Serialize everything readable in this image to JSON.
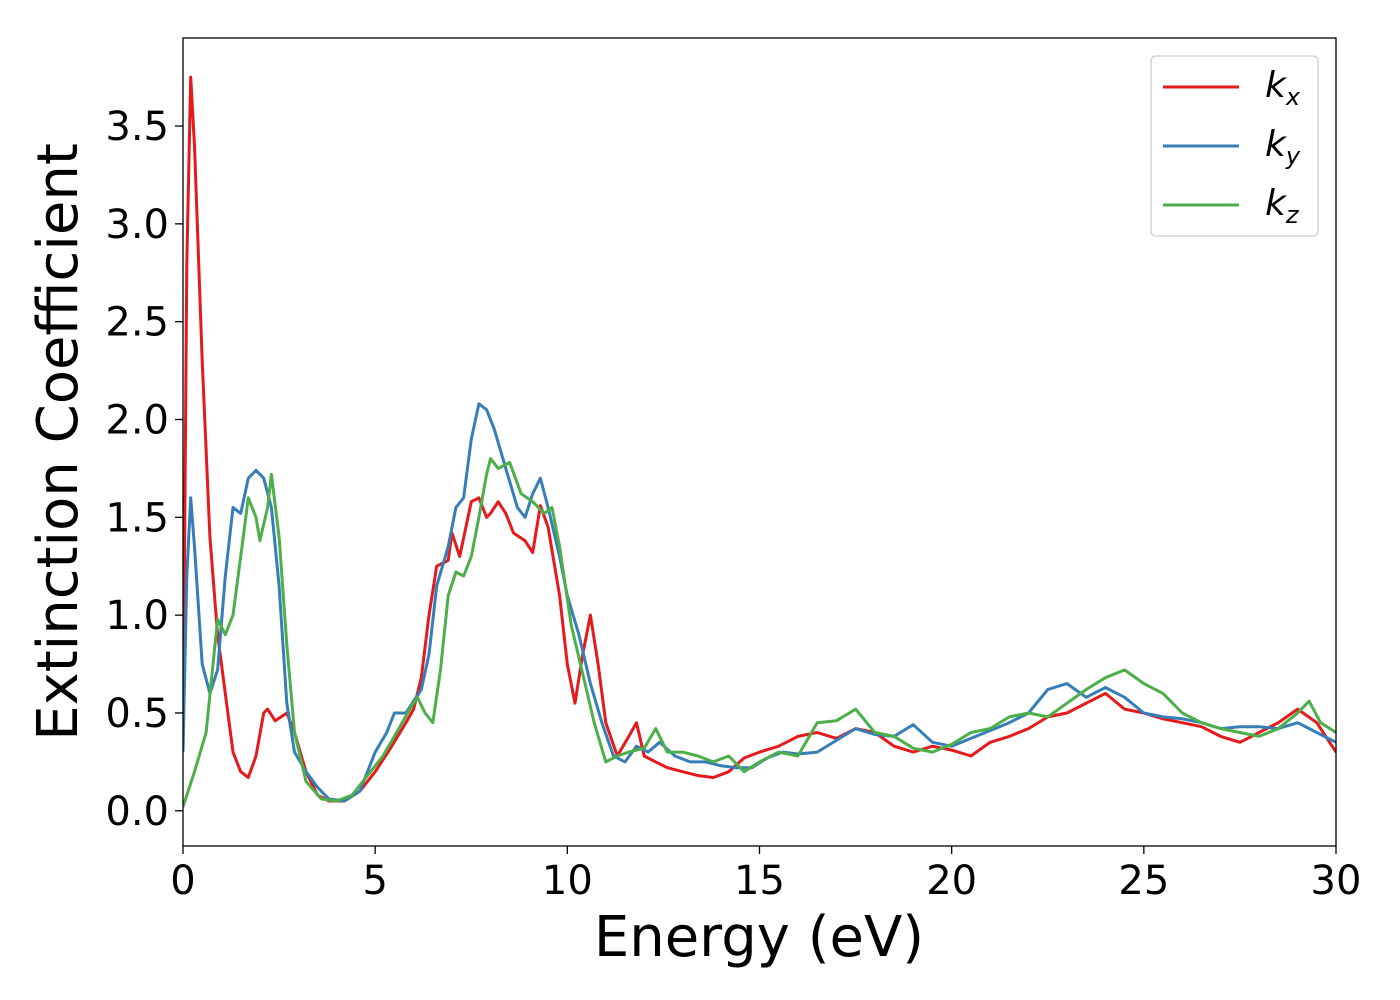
{
  "chart_data": {
    "type": "line",
    "xlabel": "Energy (eV)",
    "ylabel": "Extinction Coefficient",
    "xlim": [
      0,
      30
    ],
    "ylim": [
      -0.18,
      3.95
    ],
    "xticks": [
      0,
      5,
      10,
      15,
      20,
      25,
      30
    ],
    "yticks": [
      0.0,
      0.5,
      1.0,
      1.5,
      2.0,
      2.5,
      3.0,
      3.5
    ],
    "xtick_labels": [
      "0",
      "5",
      "10",
      "15",
      "20",
      "25",
      "30"
    ],
    "ytick_labels": [
      "0.0",
      "0.5",
      "1.0",
      "1.5",
      "2.0",
      "2.5",
      "3.0",
      "3.5"
    ],
    "grid": false,
    "legend_position": "top-right",
    "series": [
      {
        "name": "k",
        "sub": "x",
        "color": "#e41a1c",
        "points": [
          [
            0,
            0.3
          ],
          [
            0.1,
            2.8
          ],
          [
            0.2,
            3.75
          ],
          [
            0.3,
            3.4
          ],
          [
            0.5,
            2.3
          ],
          [
            0.7,
            1.4
          ],
          [
            0.9,
            0.9
          ],
          [
            1.1,
            0.6
          ],
          [
            1.3,
            0.3
          ],
          [
            1.5,
            0.2
          ],
          [
            1.7,
            0.17
          ],
          [
            1.9,
            0.28
          ],
          [
            2.1,
            0.5
          ],
          [
            2.2,
            0.52
          ],
          [
            2.4,
            0.46
          ],
          [
            2.7,
            0.5
          ],
          [
            2.9,
            0.4
          ],
          [
            3.2,
            0.2
          ],
          [
            3.5,
            0.08
          ],
          [
            3.8,
            0.05
          ],
          [
            4.2,
            0.05
          ],
          [
            4.6,
            0.1
          ],
          [
            5.0,
            0.2
          ],
          [
            5.4,
            0.32
          ],
          [
            5.8,
            0.45
          ],
          [
            6.0,
            0.52
          ],
          [
            6.2,
            0.68
          ],
          [
            6.4,
            1.0
          ],
          [
            6.6,
            1.25
          ],
          [
            6.9,
            1.28
          ],
          [
            7.0,
            1.42
          ],
          [
            7.2,
            1.3
          ],
          [
            7.5,
            1.58
          ],
          [
            7.7,
            1.6
          ],
          [
            7.9,
            1.5
          ],
          [
            8.0,
            1.52
          ],
          [
            8.2,
            1.58
          ],
          [
            8.4,
            1.52
          ],
          [
            8.6,
            1.42
          ],
          [
            8.9,
            1.38
          ],
          [
            9.1,
            1.32
          ],
          [
            9.3,
            1.56
          ],
          [
            9.5,
            1.45
          ],
          [
            9.8,
            1.1
          ],
          [
            10.0,
            0.75
          ],
          [
            10.2,
            0.55
          ],
          [
            10.4,
            0.8
          ],
          [
            10.6,
            1.0
          ],
          [
            10.8,
            0.75
          ],
          [
            11.0,
            0.45
          ],
          [
            11.3,
            0.28
          ],
          [
            11.6,
            0.38
          ],
          [
            11.8,
            0.45
          ],
          [
            12.0,
            0.28
          ],
          [
            12.3,
            0.25
          ],
          [
            12.6,
            0.22
          ],
          [
            13.0,
            0.2
          ],
          [
            13.4,
            0.18
          ],
          [
            13.8,
            0.17
          ],
          [
            14.2,
            0.2
          ],
          [
            14.6,
            0.27
          ],
          [
            15.0,
            0.3
          ],
          [
            15.5,
            0.33
          ],
          [
            16.0,
            0.38
          ],
          [
            16.5,
            0.4
          ],
          [
            17.0,
            0.37
          ],
          [
            17.5,
            0.42
          ],
          [
            18.0,
            0.4
          ],
          [
            18.5,
            0.33
          ],
          [
            19.0,
            0.3
          ],
          [
            19.5,
            0.33
          ],
          [
            20.0,
            0.31
          ],
          [
            20.5,
            0.28
          ],
          [
            21.0,
            0.35
          ],
          [
            21.5,
            0.38
          ],
          [
            22.0,
            0.42
          ],
          [
            22.5,
            0.48
          ],
          [
            23.0,
            0.5
          ],
          [
            23.5,
            0.55
          ],
          [
            24.0,
            0.6
          ],
          [
            24.5,
            0.52
          ],
          [
            25.0,
            0.5
          ],
          [
            25.5,
            0.47
          ],
          [
            26.0,
            0.45
          ],
          [
            26.5,
            0.43
          ],
          [
            27.0,
            0.38
          ],
          [
            27.5,
            0.35
          ],
          [
            28.0,
            0.4
          ],
          [
            28.5,
            0.45
          ],
          [
            29.0,
            0.52
          ],
          [
            29.5,
            0.45
          ],
          [
            30.0,
            0.3
          ]
        ]
      },
      {
        "name": "k",
        "sub": "y",
        "color": "#377eb8",
        "points": [
          [
            0,
            0.3
          ],
          [
            0.1,
            1.2
          ],
          [
            0.2,
            1.6
          ],
          [
            0.3,
            1.35
          ],
          [
            0.5,
            0.75
          ],
          [
            0.7,
            0.6
          ],
          [
            0.9,
            0.72
          ],
          [
            1.1,
            1.2
          ],
          [
            1.3,
            1.55
          ],
          [
            1.5,
            1.52
          ],
          [
            1.7,
            1.7
          ],
          [
            1.9,
            1.74
          ],
          [
            2.1,
            1.7
          ],
          [
            2.3,
            1.55
          ],
          [
            2.5,
            1.15
          ],
          [
            2.7,
            0.55
          ],
          [
            2.9,
            0.3
          ],
          [
            3.2,
            0.2
          ],
          [
            3.5,
            0.12
          ],
          [
            3.8,
            0.06
          ],
          [
            4.2,
            0.05
          ],
          [
            4.6,
            0.1
          ],
          [
            5.0,
            0.3
          ],
          [
            5.3,
            0.4
          ],
          [
            5.5,
            0.5
          ],
          [
            5.8,
            0.5
          ],
          [
            6.2,
            0.62
          ],
          [
            6.4,
            0.8
          ],
          [
            6.6,
            1.15
          ],
          [
            6.9,
            1.35
          ],
          [
            7.1,
            1.55
          ],
          [
            7.3,
            1.6
          ],
          [
            7.5,
            1.9
          ],
          [
            7.7,
            2.08
          ],
          [
            7.9,
            2.05
          ],
          [
            8.1,
            1.95
          ],
          [
            8.4,
            1.75
          ],
          [
            8.7,
            1.55
          ],
          [
            8.9,
            1.5
          ],
          [
            9.1,
            1.62
          ],
          [
            9.3,
            1.7
          ],
          [
            9.5,
            1.55
          ],
          [
            9.8,
            1.3
          ],
          [
            10.0,
            1.1
          ],
          [
            10.3,
            0.9
          ],
          [
            10.6,
            0.65
          ],
          [
            10.9,
            0.45
          ],
          [
            11.2,
            0.28
          ],
          [
            11.5,
            0.25
          ],
          [
            11.8,
            0.33
          ],
          [
            12.1,
            0.3
          ],
          [
            12.4,
            0.35
          ],
          [
            12.8,
            0.28
          ],
          [
            13.2,
            0.25
          ],
          [
            13.6,
            0.25
          ],
          [
            14.0,
            0.23
          ],
          [
            14.4,
            0.22
          ],
          [
            14.8,
            0.22
          ],
          [
            15.2,
            0.27
          ],
          [
            15.6,
            0.3
          ],
          [
            16.0,
            0.29
          ],
          [
            16.5,
            0.3
          ],
          [
            17.0,
            0.36
          ],
          [
            17.5,
            0.42
          ],
          [
            18.0,
            0.39
          ],
          [
            18.5,
            0.38
          ],
          [
            19.0,
            0.44
          ],
          [
            19.5,
            0.35
          ],
          [
            20.0,
            0.33
          ],
          [
            20.5,
            0.37
          ],
          [
            21.0,
            0.41
          ],
          [
            21.5,
            0.45
          ],
          [
            22.0,
            0.5
          ],
          [
            22.5,
            0.62
          ],
          [
            23.0,
            0.65
          ],
          [
            23.5,
            0.58
          ],
          [
            24.0,
            0.63
          ],
          [
            24.5,
            0.58
          ],
          [
            25.0,
            0.5
          ],
          [
            25.5,
            0.48
          ],
          [
            26.0,
            0.47
          ],
          [
            26.5,
            0.45
          ],
          [
            27.0,
            0.42
          ],
          [
            27.5,
            0.43
          ],
          [
            28.0,
            0.43
          ],
          [
            28.5,
            0.42
          ],
          [
            29.0,
            0.45
          ],
          [
            29.5,
            0.4
          ],
          [
            30.0,
            0.35
          ]
        ]
      },
      {
        "name": "k",
        "sub": "z",
        "color": "#4daf4a",
        "points": [
          [
            0,
            0.02
          ],
          [
            0.3,
            0.2
          ],
          [
            0.6,
            0.4
          ],
          [
            0.9,
            0.98
          ],
          [
            1.1,
            0.9
          ],
          [
            1.3,
            1.0
          ],
          [
            1.5,
            1.3
          ],
          [
            1.7,
            1.6
          ],
          [
            1.9,
            1.5
          ],
          [
            2.0,
            1.38
          ],
          [
            2.2,
            1.55
          ],
          [
            2.3,
            1.72
          ],
          [
            2.5,
            1.4
          ],
          [
            2.7,
            0.85
          ],
          [
            2.9,
            0.4
          ],
          [
            3.2,
            0.15
          ],
          [
            3.6,
            0.06
          ],
          [
            4.0,
            0.05
          ],
          [
            4.4,
            0.08
          ],
          [
            4.8,
            0.18
          ],
          [
            5.2,
            0.28
          ],
          [
            5.5,
            0.38
          ],
          [
            5.9,
            0.52
          ],
          [
            6.1,
            0.58
          ],
          [
            6.3,
            0.5
          ],
          [
            6.5,
            0.45
          ],
          [
            6.7,
            0.72
          ],
          [
            6.9,
            1.1
          ],
          [
            7.1,
            1.22
          ],
          [
            7.3,
            1.2
          ],
          [
            7.5,
            1.3
          ],
          [
            7.7,
            1.5
          ],
          [
            7.9,
            1.72
          ],
          [
            8.0,
            1.8
          ],
          [
            8.2,
            1.75
          ],
          [
            8.5,
            1.78
          ],
          [
            8.8,
            1.62
          ],
          [
            9.1,
            1.58
          ],
          [
            9.4,
            1.52
          ],
          [
            9.6,
            1.55
          ],
          [
            9.8,
            1.35
          ],
          [
            10.1,
            0.95
          ],
          [
            10.4,
            0.7
          ],
          [
            10.7,
            0.45
          ],
          [
            11.0,
            0.25
          ],
          [
            11.3,
            0.28
          ],
          [
            11.6,
            0.3
          ],
          [
            12.0,
            0.32
          ],
          [
            12.3,
            0.42
          ],
          [
            12.6,
            0.3
          ],
          [
            13.0,
            0.3
          ],
          [
            13.4,
            0.28
          ],
          [
            13.8,
            0.25
          ],
          [
            14.2,
            0.28
          ],
          [
            14.6,
            0.2
          ],
          [
            15.0,
            0.25
          ],
          [
            15.5,
            0.3
          ],
          [
            16.0,
            0.28
          ],
          [
            16.5,
            0.45
          ],
          [
            17.0,
            0.46
          ],
          [
            17.5,
            0.52
          ],
          [
            18.0,
            0.4
          ],
          [
            18.5,
            0.38
          ],
          [
            19.0,
            0.32
          ],
          [
            19.5,
            0.3
          ],
          [
            20.0,
            0.34
          ],
          [
            20.5,
            0.4
          ],
          [
            21.0,
            0.42
          ],
          [
            21.5,
            0.48
          ],
          [
            22.0,
            0.5
          ],
          [
            22.5,
            0.48
          ],
          [
            23.0,
            0.55
          ],
          [
            23.5,
            0.62
          ],
          [
            24.0,
            0.68
          ],
          [
            24.5,
            0.72
          ],
          [
            25.0,
            0.65
          ],
          [
            25.5,
            0.6
          ],
          [
            26.0,
            0.5
          ],
          [
            26.5,
            0.45
          ],
          [
            27.0,
            0.42
          ],
          [
            27.5,
            0.4
          ],
          [
            28.0,
            0.38
          ],
          [
            28.5,
            0.42
          ],
          [
            29.0,
            0.5
          ],
          [
            29.3,
            0.56
          ],
          [
            29.6,
            0.45
          ],
          [
            30.0,
            0.4
          ]
        ]
      }
    ]
  }
}
